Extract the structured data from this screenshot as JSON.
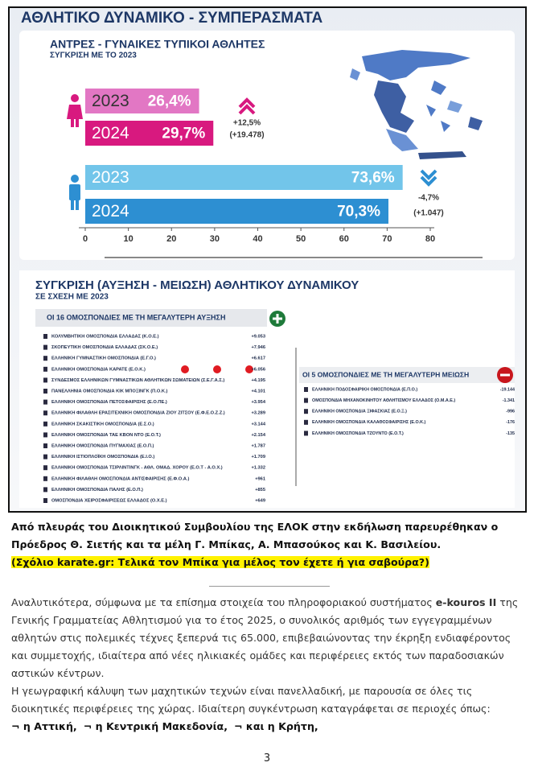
{
  "infographic": {
    "title": "ΑΘΛΗΤΙΚΟ ΔΥΝΑΜΙΚΟ - ΣΥΜΠΕΡΑΣΜΑΤΑ",
    "chart": {
      "type": "bar",
      "title": "ΑΝΤΡΕΣ - ΓΥΝΑΙΚΕΣ ΤΥΠΙΚΟΙ ΑΘΛΗΤΕΣ",
      "subtitle": "ΣΥΓΚΡΙΣΗ ΜΕ ΤΟ 2023",
      "xlim": [
        0,
        80
      ],
      "xticks": [
        0,
        10,
        20,
        30,
        40,
        50,
        60,
        70,
        80
      ],
      "bars": [
        {
          "category": "2023",
          "value": 26.4,
          "value_label": "26,4%",
          "color": "#e277c4"
        },
        {
          "category": "2024",
          "value": 29.7,
          "value_label": "29,7%",
          "color": "#d8197f"
        },
        {
          "category": "2023",
          "value": 73.6,
          "value_label": "73,6%",
          "color": "#72c5ea"
        },
        {
          "category": "2024",
          "value": 70.3,
          "value_label": "70,3%",
          "color": "#2d8fd2"
        }
      ],
      "changes": [
        {
          "percent": "+12,5%",
          "count": "(+19.478)"
        },
        {
          "percent": "-4,7%",
          "count": "(+1.047)"
        }
      ]
    },
    "comparison": {
      "title": "ΣΥΓΚΡΙΣΗ (ΑΥΞΗΣΗ - ΜΕΙΩΣΗ) ΑΘΛΗΤΙΚΟΥ ΔΥΝΑΜΙΚΟΥ",
      "subtitle": "ΣΕ ΣΧΕΣΗ ΜΕ 2023",
      "increase": {
        "header": "ΟΙ 16 ΟΜΟΣΠΟΝΔΙΕΣ ΜΕ ΤΗ ΜΕΓΑΛΥΤΕΡΗ ΑΥΞΗΣΗ",
        "rows": [
          {
            "name": "ΚΟΛΥΜΒΗΤΙΚΗ ΟΜΟΣΠΟΝΔΙΑ ΕΛΛΑΔΑΣ (Κ.Ο.Ε.)",
            "change": "+9.053"
          },
          {
            "name": "ΣΚΟΠΕΥΤΙΚΗ ΟΜΟΣΠΟΝΔΙΑ ΕΛΛΑΔΑΣ (ΣΚ.Ο.Ε.)",
            "change": "+7.946"
          },
          {
            "name": "ΕΛΛΗΝΙΚΗ ΓΥΜΝΑΣΤΙΚΗ ΟΜΟΣΠΟΝΔΙΑ (Ε.Γ.Ο.)",
            "change": "+6.617"
          },
          {
            "name": "ΕΛΛΗΝΙΚΗ ΟΜΟΣΠΟΝΔΙΑ ΚΑΡΑΤΕ (Ε.Ο.Κ.)",
            "change": "+6.056"
          },
          {
            "name": "ΣΥΝΔΕΣΜΟΣ ΕΛΛΗΝΙΚΩΝ ΓΥΜΝΑΣΤΙΚΩΝ ΑΘΛΗΤΙΚΩΝ ΣΩΜΑΤΕΙΩΝ (Σ.Ε.Γ.Α.Σ.)",
            "change": "+4.195"
          },
          {
            "name": "ΠΑΝΕΛΛΗΝΙΑ ΟΜΟΣΠΟΝΔΙΑ ΚΙΚ ΜΠΟΞΙΝΓΚ (Π.Ο.Κ.)",
            "change": "+4.101"
          },
          {
            "name": "ΕΛΛΗΝΙΚΗ ΟΜΟΣΠΟΝΔΙΑ ΠΕΤΟΣΦΑΙΡΙΣΗΣ (Ε.Ο.ΠΕ.)",
            "change": "+3.954"
          },
          {
            "name": "ΕΛΛΗΝΙΚΗ ΦΙΛΑΘΛΗ ΕΡΑΣΙΤΕΧΝΙΚΗ ΟΜΟΣΠΟΝΔΙΑ ΖΙΟΥ ΖΙΤΣΟΥ (Ε.Φ.Ε.Ο.Ζ.Ζ.)",
            "change": "+3.289"
          },
          {
            "name": "ΕΛΛΗΝΙΚΗ ΣΚΑΚΙΣΤΙΚΗ ΟΜΟΣΠΟΝΔΙΑ (Ε.Σ.Ο.)",
            "change": "+3.144"
          },
          {
            "name": "ΕΛΛΗΝΙΚΗ ΟΜΟΣΠΟΝΔΙΑ ΤΑΕ ΚΒΟΝ ΝΤΟ (Ε.Ο.Τ.)",
            "change": "+2.154"
          },
          {
            "name": "ΕΛΛΗΝΙΚΗ ΟΜΟΣΠΟΝΔΙΑ ΠΥΓΜΑΧΙΑΣ (Ε.Ο.Π.)",
            "change": "+1.787"
          },
          {
            "name": "ΕΛΛΗΝΙΚΗ ΙΣΤΙΟΠΛΟΪΚΗ ΟΜΟΣΠΟΝΔΙΑ (Ε.Ι.Ο.)",
            "change": "+1.709"
          },
          {
            "name": "ΕΛΛΗΝΙΚΗ ΟΜΟΣΠΟΝΔΙΑ ΤΣΙΡΛΙΝΤΙΝΓΚ - ΑΘΛ. ΟΜΑΔ. ΧΟΡΟΥ (Ε.Ο.Τ - Α.Ο.Χ.)",
            "change": "+1.332"
          },
          {
            "name": "ΕΛΛΗΝΙΚΗ ΦΙΛΑΘΛΗ ΟΜΟΣΠΟΝΔΙΑ ΑΝΤΙΣΦΑΙΡΙΣΗΣ (Ε.Φ.Ο.Α.)",
            "change": "+961"
          },
          {
            "name": "ΕΛΛΗΝΙΚΗ ΟΜΟΣΠΟΝΔΙΑ ΠΑΛΗΣ (Ε.Ο.Π.)",
            "change": "+855"
          },
          {
            "name": "ΟΜΟΣΠΟΝΔΙΑ ΧΕΙΡΟΣΦΑΙΡΙΣΕΩΣ ΕΛΛΑΔΟΣ (Ο.Χ.Ε.)",
            "change": "+649"
          }
        ]
      },
      "decrease": {
        "header": "ΟΙ 5 ΟΜΟΣΠΟΝΔΙΕΣ ΜΕ ΤΗ ΜΕΓΑΛΥΤΕΡΗ ΜΕΙΩΣΗ",
        "rows": [
          {
            "name": "ΕΛΛΗΝΙΚΗ ΠΟΔΟΣΦΑΙΡΙΚΗ ΟΜΟΣΠΟΝΔΙΑ (Ε.Π.Ο.)",
            "change": "-19.144"
          },
          {
            "name": "ΟΜΟΣΠΟΝΔΙΑ ΜΗΧΑΝΟΚΙΝΗΤΟΥ ΑΘΛΗΤΙΣΜΟΥ ΕΛΛΑΔΟΣ (Ο.Μ.Α.Ε.)",
            "change": "-1.341"
          },
          {
            "name": "ΕΛΛΗΝΙΚΗ ΟΜΟΣΠΟΝΔΙΑ ΞΙΦΑΣΚΙΑΣ (Ε.Ο.Ξ.)",
            "change": "-996"
          },
          {
            "name": "ΕΛΛΗΝΙΚΗ ΟΜΟΣΠΟΝΔΙΑ ΚΑΛΑΘΟΣΦΑΙΡΙΣΗΣ (Ε.Ο.Κ.)",
            "change": "-176"
          },
          {
            "name": "ΕΛΛΗΝΙΚΗ ΟΜΟΣΠΟΝΔΙΑ ΤΖΟΥΝΤΟ (Ε.Ο.Τ.)",
            "change": "-135"
          }
        ]
      }
    }
  },
  "caption": {
    "text": "Από πλευράς του Διοικητικού Συμβουλίου της ΕΛΟΚ στην εκδήλωση παρευρέθηκαν ο Πρόεδρος Θ. Σιετής και τα μέλη Γ. Μπίκας, Α. Μπασούκος και Κ. Βασιλείου.",
    "comment": "(Σχόλιο karate.gr: Τελικά τον Μπίκα για μέλος τον έχετε ή για σαβούρα?)"
  },
  "body": {
    "paragraph_1": [
      "Αναλυτικότερα, σύμφωνα με τα επίσημα στοιχεία του πληροφοριακού συστήματος ",
      "e-kouros II",
      " της Γενικής Γραμματείας Αθλητισμού για το έτος 2025, ο συνολικός αριθμός των εγγεγραμμένων αθλητών στις πολεμικές τέχνες ξεπερνά τις 65.000, επιβεβαιώνοντας την έκρηξη ενδιαφέροντος και συμμετοχής, ιδιαίτερα από νέες ηλικιακές ομάδες και περιφέρειες εκτός των παραδοσιακών αστικών κέντρων."
    ],
    "paragraph_2": "Η γεωγραφική κάλυψη των μαχητικών τεχνών είναι πανελλαδική, με παρουσία σε όλες τις διοικητικές περιφέρειες της χώρας. Ιδιαίτερη συγκέντρωση καταγράφεται σε περιοχές όπως:",
    "regions": [
      "¬ η Αττική,",
      "¬ η Κεντρική Μακεδονία,",
      "¬ και η Κρήτη,"
    ]
  },
  "page_number": "3"
}
